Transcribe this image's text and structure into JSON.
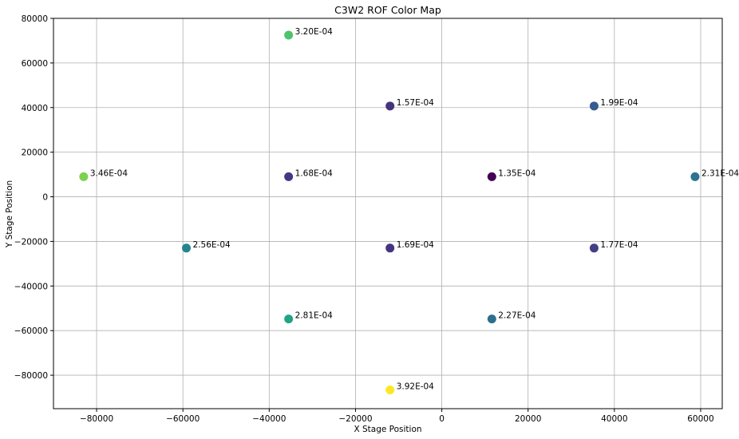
{
  "chart_data": {
    "type": "scatter",
    "title": "C3W2 ROF Color Map",
    "xlabel": "X Stage Position",
    "ylabel": "Y Stage Position",
    "xlim": [
      -90000,
      65000
    ],
    "ylim": [
      -95000,
      80000
    ],
    "xticks": [
      -80000,
      -60000,
      -40000,
      -20000,
      0,
      20000,
      40000,
      60000
    ],
    "yticks": [
      -80000,
      -60000,
      -40000,
      -20000,
      0,
      20000,
      40000,
      60000,
      80000
    ],
    "grid": true,
    "colormap": "viridis",
    "points": [
      {
        "x": -35500,
        "y": 72500,
        "value": 0.00032,
        "label": "3.20E-04",
        "color": "#4ec36b"
      },
      {
        "x": -12000,
        "y": 40700,
        "value": 0.000157,
        "label": "1.57E-04",
        "color": "#46337e"
      },
      {
        "x": 35300,
        "y": 40700,
        "value": 0.000199,
        "label": "1.99E-04",
        "color": "#375b8d"
      },
      {
        "x": -83000,
        "y": 9000,
        "value": 0.000346,
        "label": "3.46E-04",
        "color": "#7cd250"
      },
      {
        "x": -35500,
        "y": 9000,
        "value": 0.000168,
        "label": "1.68E-04",
        "color": "#453882"
      },
      {
        "x": 11600,
        "y": 9000,
        "value": 0.000135,
        "label": "1.35E-04",
        "color": "#440154"
      },
      {
        "x": 58700,
        "y": 9000,
        "value": 0.000231,
        "label": "2.31E-04",
        "color": "#2c738e"
      },
      {
        "x": -59200,
        "y": -23000,
        "value": 0.000256,
        "label": "2.56E-04",
        "color": "#25858e"
      },
      {
        "x": -12000,
        "y": -23000,
        "value": 0.000169,
        "label": "1.69E-04",
        "color": "#463480"
      },
      {
        "x": 35300,
        "y": -23000,
        "value": 0.000177,
        "label": "1.77E-04",
        "color": "#433e85"
      },
      {
        "x": -35500,
        "y": -54800,
        "value": 0.000281,
        "label": "2.81E-04",
        "color": "#20a486"
      },
      {
        "x": 11600,
        "y": -54800,
        "value": 0.000227,
        "label": "2.27E-04",
        "color": "#2d708e"
      },
      {
        "x": -12000,
        "y": -86600,
        "value": 0.000392,
        "label": "3.92E-04",
        "color": "#fde725"
      }
    ]
  }
}
